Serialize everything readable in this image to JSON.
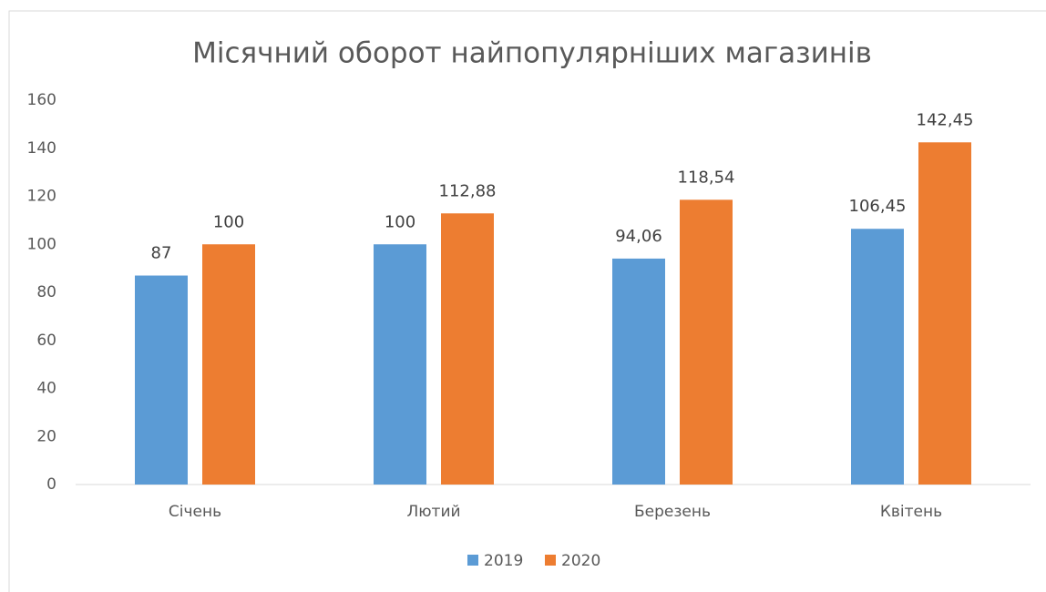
{
  "chart_data": {
    "type": "bar",
    "title": "Місячний оборот найпопулярніших магазинів",
    "categories": [
      "Січень",
      "Лютий",
      "Березень",
      "Квітень"
    ],
    "series": [
      {
        "name": "2019",
        "color": "#5b9bd5",
        "values": [
          87,
          100,
          94.06,
          106.45
        ],
        "value_labels": [
          "87",
          "100",
          "94,06",
          "106,45"
        ]
      },
      {
        "name": "2020",
        "color": "#ed7d31",
        "values": [
          100,
          112.88,
          118.54,
          142.45
        ],
        "value_labels": [
          "100",
          "112,88",
          "118,54",
          "142,45"
        ]
      }
    ],
    "ylim": [
      0,
      160
    ],
    "yticks": [
      0,
      20,
      40,
      60,
      80,
      100,
      120,
      140,
      160
    ],
    "grid": false,
    "legend": "bottom"
  }
}
